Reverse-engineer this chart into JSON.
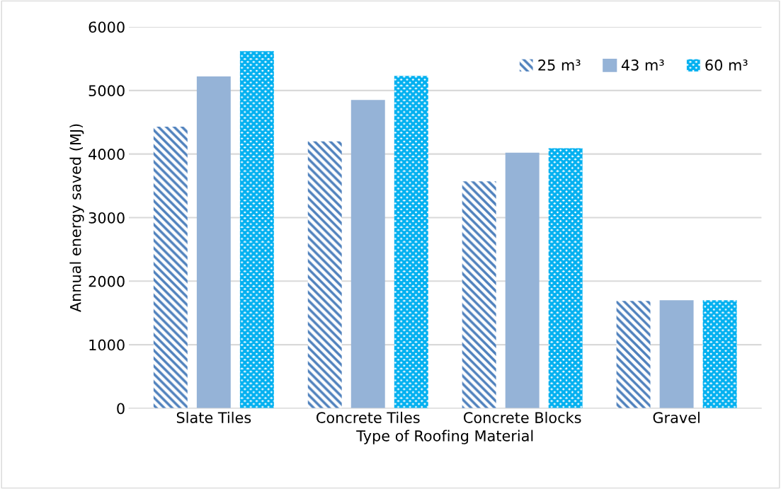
{
  "chart_data": {
    "type": "bar",
    "xlabel": "Type of Roofing Material",
    "ylabel": "Annual energy saved (MJ)",
    "categories": [
      "Slate Tiles",
      "Concrete Tiles",
      "Concrete Blocks",
      "Gravel"
    ],
    "series": [
      {
        "name": "25 m³",
        "color": "#4f81bd",
        "values": [
          4430,
          4200,
          3570,
          1690
        ]
      },
      {
        "name": "43 m³",
        "color": "#95b3d7",
        "values": [
          5220,
          4850,
          4020,
          1700
        ]
      },
      {
        "name": "60 m³",
        "color": "#00b0f0",
        "values": [
          5620,
          5230,
          4090,
          1700
        ]
      }
    ],
    "ylim": [
      0,
      6000
    ],
    "yticks": [
      0,
      1000,
      2000,
      3000,
      4000,
      5000,
      6000
    ],
    "grid": "y",
    "legend": "top right"
  }
}
